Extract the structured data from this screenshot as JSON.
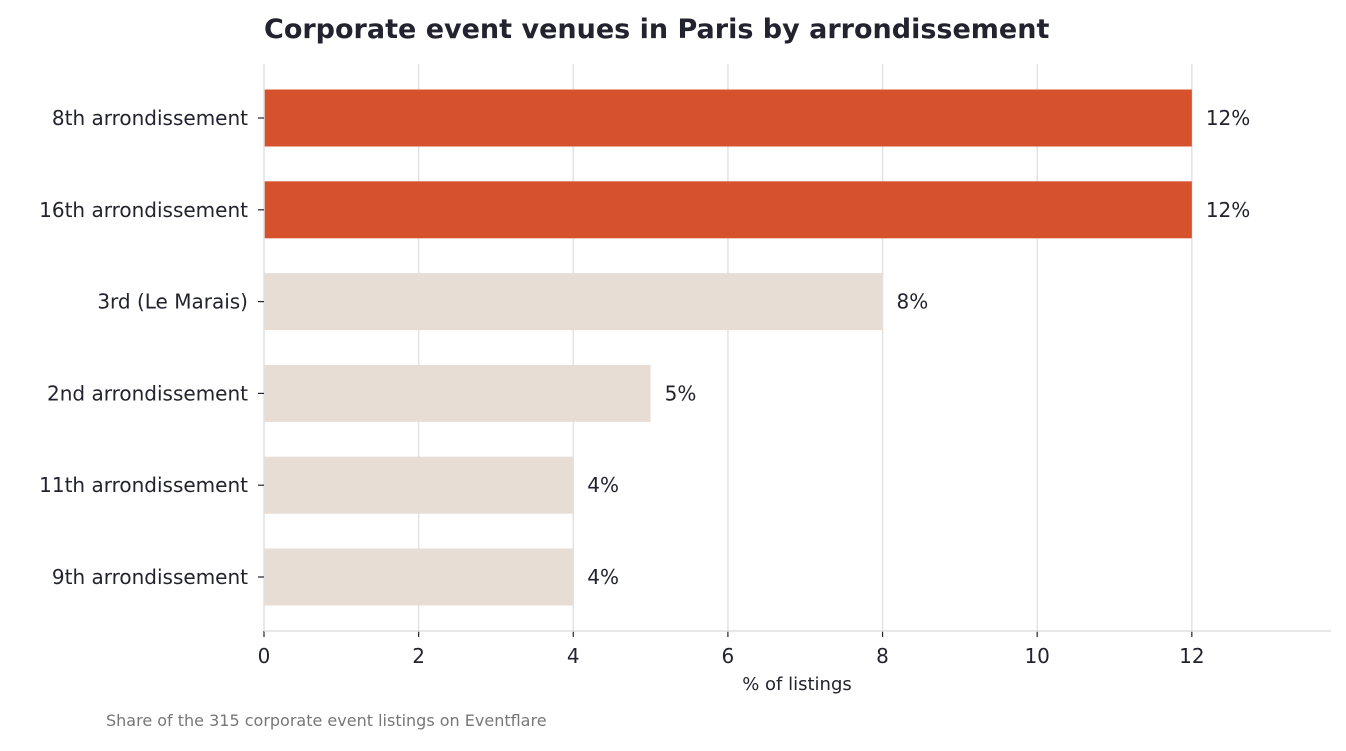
{
  "chart_data": {
    "type": "bar",
    "orientation": "horizontal",
    "title": "Corporate event venues in Paris by arrondissement",
    "xlabel": "% of listings",
    "ylabel": "",
    "categories": [
      "8th arrondissement",
      "16th arrondissement",
      "3rd (Le Marais)",
      "2nd arrondissement",
      "11th arrondissement",
      "9th arrondissement"
    ],
    "values": [
      12,
      12,
      8,
      5,
      4,
      4
    ],
    "value_labels": [
      "12%",
      "12%",
      "8%",
      "5%",
      "4%",
      "4%"
    ],
    "highlighted": [
      true,
      true,
      false,
      false,
      false,
      false
    ],
    "xlim": [
      0,
      13.8
    ],
    "xticks": [
      0,
      2,
      4,
      6,
      8,
      10,
      12
    ],
    "grid": "vertical",
    "legend": "none",
    "footnote": "Share of the 315 corporate event listings on Eventflare"
  },
  "colors": {
    "highlight": "#d6522d",
    "default": "#e8ddd4",
    "text": "#22232e",
    "grid": "#e3e3e3",
    "footnote": "#777777"
  }
}
